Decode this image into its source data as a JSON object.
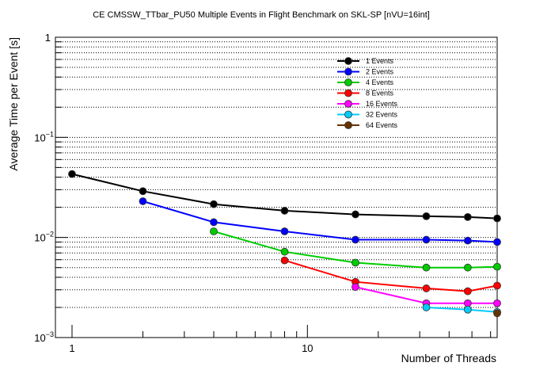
{
  "chart_data": {
    "type": "line",
    "title": "CE CMSSW_TTbar_PU50 Multiple Events in Flight Benchmark on SKL-SP [nVU=16int]",
    "xlabel": "Number of Threads",
    "ylabel": "Average Time per Event [s]",
    "x_scale": "log",
    "y_scale": "log",
    "xlim": [
      0.85,
      64
    ],
    "ylim": [
      0.001,
      1
    ],
    "x_ticks": [
      {
        "value": 1,
        "label": "1"
      },
      {
        "value": 10,
        "label": "10"
      }
    ],
    "y_ticks": [
      {
        "value": 1,
        "label": "1",
        "exp": ""
      },
      {
        "value": 0.1,
        "label": "10",
        "exp": "−1"
      },
      {
        "value": 0.01,
        "label": "10",
        "exp": "−2"
      },
      {
        "value": 0.001,
        "label": "10",
        "exp": "−3"
      }
    ],
    "grid_y": true,
    "legend_position": "top-right",
    "series": [
      {
        "name": "1 Events",
        "color": "#000000",
        "x": [
          1,
          2,
          4,
          8,
          16,
          32,
          48,
          64
        ],
        "values": [
          0.043,
          0.029,
          0.0215,
          0.0185,
          0.017,
          0.0163,
          0.016,
          0.0155
        ]
      },
      {
        "name": "2 Events",
        "color": "#0000ff",
        "x": [
          2,
          4,
          8,
          16,
          32,
          48,
          64
        ],
        "values": [
          0.023,
          0.0142,
          0.0115,
          0.0095,
          0.0095,
          0.0093,
          0.009
        ]
      },
      {
        "name": "4 Events",
        "color": "#00cc00",
        "x": [
          4,
          8,
          16,
          32,
          48,
          64
        ],
        "values": [
          0.0115,
          0.0072,
          0.0056,
          0.005,
          0.005,
          0.0051
        ]
      },
      {
        "name": "8 Events",
        "color": "#ff0000",
        "x": [
          8,
          16,
          32,
          48,
          64
        ],
        "values": [
          0.0059,
          0.0036,
          0.0031,
          0.0029,
          0.0033
        ]
      },
      {
        "name": "16 Events",
        "color": "#ff00ff",
        "x": [
          16,
          32,
          48,
          64
        ],
        "values": [
          0.0032,
          0.0022,
          0.0022,
          0.0022
        ]
      },
      {
        "name": "32 Events",
        "color": "#00ccff",
        "x": [
          32,
          48,
          64
        ],
        "values": [
          0.002,
          0.0019,
          0.0018
        ]
      },
      {
        "name": "64 Events",
        "color": "#663300",
        "x": [
          64
        ],
        "values": [
          0.00175
        ]
      }
    ]
  }
}
